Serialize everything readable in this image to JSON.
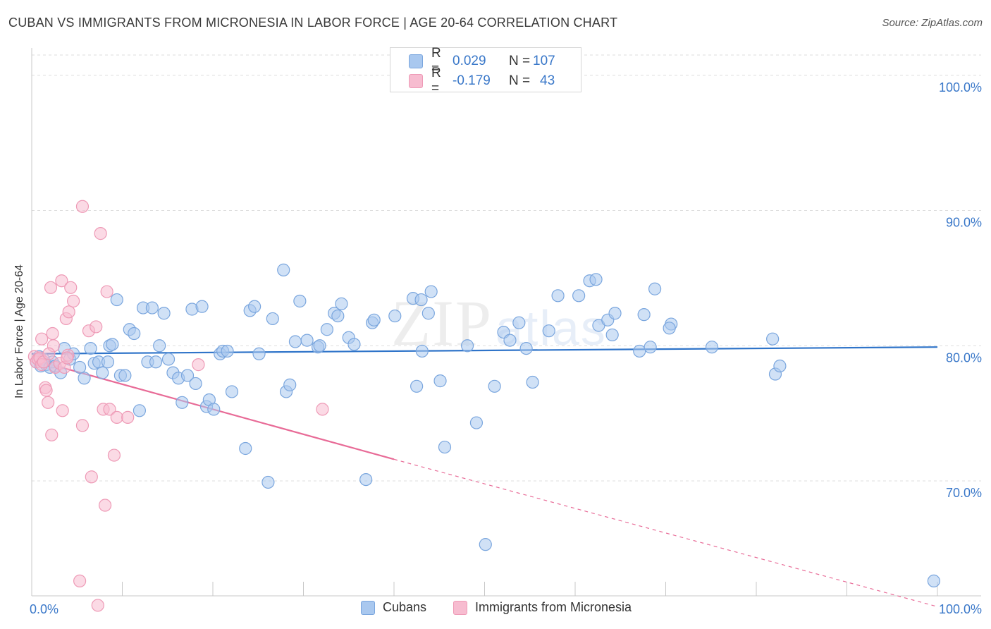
{
  "title": "CUBAN VS IMMIGRANTS FROM MICRONESIA IN LABOR FORCE | AGE 20-64 CORRELATION CHART",
  "source": "Source: ZipAtlas.com",
  "watermark": {
    "part1": "ZIP",
    "part2": "atlas"
  },
  "colors": {
    "blue_fill": "#a9c8ef",
    "blue_stroke": "#7aa6de",
    "blue_line": "#2f74c9",
    "pink_fill": "#f7bcd0",
    "pink_stroke": "#ee9ab6",
    "pink_line": "#e86b97",
    "tick_label": "#3a78c9",
    "grid": "#dddddd"
  },
  "legend_top": {
    "r_label": "R =",
    "n_label": "N =",
    "rows": [
      {
        "r": "0.029",
        "n": "107"
      },
      {
        "r": "-0.179",
        "n": "43"
      }
    ]
  },
  "chart_data": {
    "type": "scatter",
    "title": "CUBAN VS IMMIGRANTS FROM MICRONESIA IN LABOR FORCE | AGE 20-64 CORRELATION CHART",
    "xlabel": "",
    "ylabel": "In Labor Force | Age 20-64",
    "xlim": [
      0,
      100
    ],
    "ylim": [
      61.5,
      101.5
    ],
    "x_tick_labels": [
      "0.0%",
      "100.0%"
    ],
    "y_ticks": [
      70,
      80,
      90,
      100
    ],
    "y_tick_labels": [
      "70.0%",
      "80.0%",
      "90.0%",
      "100.0%"
    ],
    "grid": true,
    "legend_position": "top-center",
    "series": [
      {
        "name": "Cubans",
        "r": 0.029,
        "n": 107,
        "trend": {
          "x": [
            0,
            100
          ],
          "y": [
            79.4,
            79.9
          ]
        },
        "points": [
          [
            0.5,
            78.8
          ],
          [
            0.8,
            79.2
          ],
          [
            1.0,
            78.5
          ],
          [
            1.3,
            79.0
          ],
          [
            1.6,
            78.6
          ],
          [
            2.0,
            78.4
          ],
          [
            2.3,
            78.8
          ],
          [
            2.6,
            78.5
          ],
          [
            3.2,
            78.0
          ],
          [
            3.6,
            79.8
          ],
          [
            4.2,
            79.0
          ],
          [
            4.6,
            79.4
          ],
          [
            5.3,
            78.4
          ],
          [
            5.8,
            77.6
          ],
          [
            6.5,
            79.8
          ],
          [
            6.9,
            78.7
          ],
          [
            7.4,
            78.8
          ],
          [
            7.8,
            78.0
          ],
          [
            8.4,
            78.8
          ],
          [
            8.6,
            80.0
          ],
          [
            8.9,
            80.1
          ],
          [
            9.4,
            83.4
          ],
          [
            9.8,
            77.8
          ],
          [
            10.3,
            77.8
          ],
          [
            10.8,
            81.2
          ],
          [
            11.3,
            80.9
          ],
          [
            11.9,
            75.2
          ],
          [
            12.3,
            82.8
          ],
          [
            12.8,
            78.8
          ],
          [
            13.3,
            82.8
          ],
          [
            13.7,
            78.8
          ],
          [
            14.1,
            80.0
          ],
          [
            14.6,
            82.4
          ],
          [
            15.1,
            79.0
          ],
          [
            15.6,
            78.0
          ],
          [
            16.2,
            77.6
          ],
          [
            16.6,
            75.8
          ],
          [
            17.2,
            77.8
          ],
          [
            17.7,
            82.7
          ],
          [
            18.1,
            77.2
          ],
          [
            18.8,
            82.9
          ],
          [
            19.3,
            75.5
          ],
          [
            19.6,
            76.0
          ],
          [
            20.1,
            75.3
          ],
          [
            20.8,
            79.4
          ],
          [
            21.1,
            79.6
          ],
          [
            21.6,
            79.6
          ],
          [
            22.1,
            76.6
          ],
          [
            23.6,
            72.4
          ],
          [
            24.1,
            82.6
          ],
          [
            24.6,
            82.9
          ],
          [
            25.1,
            79.4
          ],
          [
            26.1,
            69.9
          ],
          [
            26.6,
            82.0
          ],
          [
            27.8,
            85.6
          ],
          [
            28.1,
            76.6
          ],
          [
            28.5,
            77.1
          ],
          [
            29.1,
            80.3
          ],
          [
            29.6,
            83.3
          ],
          [
            30.4,
            80.4
          ],
          [
            31.6,
            79.9
          ],
          [
            31.8,
            80.0
          ],
          [
            32.6,
            81.2
          ],
          [
            33.4,
            82.4
          ],
          [
            33.8,
            82.2
          ],
          [
            34.2,
            83.1
          ],
          [
            35.0,
            80.6
          ],
          [
            35.6,
            80.1
          ],
          [
            36.9,
            70.1
          ],
          [
            37.6,
            81.7
          ],
          [
            37.8,
            81.9
          ],
          [
            40.1,
            82.2
          ],
          [
            42.1,
            83.5
          ],
          [
            42.5,
            77.0
          ],
          [
            43.1,
            79.6
          ],
          [
            43.0,
            83.4
          ],
          [
            43.8,
            82.4
          ],
          [
            44.1,
            84.0
          ],
          [
            45.1,
            77.4
          ],
          [
            45.6,
            72.5
          ],
          [
            48.1,
            80.0
          ],
          [
            49.1,
            74.3
          ],
          [
            50.1,
            65.3
          ],
          [
            51.1,
            77.0
          ],
          [
            52.1,
            81.0
          ],
          [
            52.8,
            80.4
          ],
          [
            53.8,
            81.7
          ],
          [
            54.6,
            79.8
          ],
          [
            55.3,
            77.3
          ],
          [
            57.1,
            81.1
          ],
          [
            58.1,
            83.7
          ],
          [
            60.4,
            83.7
          ],
          [
            61.6,
            84.8
          ],
          [
            62.3,
            84.9
          ],
          [
            62.6,
            81.5
          ],
          [
            63.6,
            81.9
          ],
          [
            64.1,
            80.8
          ],
          [
            64.4,
            82.4
          ],
          [
            67.1,
            79.6
          ],
          [
            67.6,
            82.3
          ],
          [
            68.3,
            79.9
          ],
          [
            68.8,
            84.2
          ],
          [
            70.6,
            81.6
          ],
          [
            70.4,
            81.3
          ],
          [
            75.1,
            79.9
          ],
          [
            82.1,
            77.9
          ],
          [
            82.6,
            78.5
          ],
          [
            81.8,
            80.5
          ],
          [
            99.6,
            62.6
          ]
        ]
      },
      {
        "name": "Immigrants from Micronesia",
        "r": -0.179,
        "n": 43,
        "trend": {
          "x": [
            0,
            40
          ],
          "y": [
            79.0,
            71.6
          ]
        },
        "trend_dashed": {
          "x": [
            40,
            100
          ],
          "y": [
            71.6,
            60.7
          ]
        },
        "points": [
          [
            0.3,
            79.2
          ],
          [
            0.5,
            78.8
          ],
          [
            0.7,
            79.0
          ],
          [
            0.9,
            79.1
          ],
          [
            1.1,
            78.6
          ],
          [
            1.3,
            78.8
          ],
          [
            1.1,
            80.5
          ],
          [
            1.5,
            76.9
          ],
          [
            1.6,
            76.7
          ],
          [
            1.8,
            75.8
          ],
          [
            2.1,
            84.3
          ],
          [
            2.2,
            73.4
          ],
          [
            2.3,
            80.9
          ],
          [
            2.4,
            80.0
          ],
          [
            2.6,
            78.4
          ],
          [
            3.1,
            78.7
          ],
          [
            3.3,
            84.8
          ],
          [
            3.4,
            75.2
          ],
          [
            3.6,
            78.4
          ],
          [
            3.8,
            82.0
          ],
          [
            4.0,
            79.3
          ],
          [
            4.1,
            82.5
          ],
          [
            4.3,
            84.3
          ],
          [
            4.6,
            83.3
          ],
          [
            5.3,
            62.6
          ],
          [
            5.6,
            90.3
          ],
          [
            5.6,
            74.1
          ],
          [
            6.3,
            81.1
          ],
          [
            6.6,
            70.3
          ],
          [
            7.1,
            81.4
          ],
          [
            7.3,
            60.8
          ],
          [
            7.6,
            88.3
          ],
          [
            7.9,
            75.3
          ],
          [
            8.1,
            68.2
          ],
          [
            8.3,
            84.0
          ],
          [
            8.6,
            75.3
          ],
          [
            9.1,
            71.9
          ],
          [
            9.4,
            74.7
          ],
          [
            10.6,
            74.7
          ],
          [
            18.4,
            78.6
          ],
          [
            32.1,
            75.3
          ],
          [
            3.9,
            79.1
          ],
          [
            1.9,
            79.4
          ]
        ]
      }
    ]
  },
  "legend_bottom": {
    "items": [
      {
        "label": "Cubans"
      },
      {
        "label": "Immigrants from Micronesia"
      }
    ]
  }
}
